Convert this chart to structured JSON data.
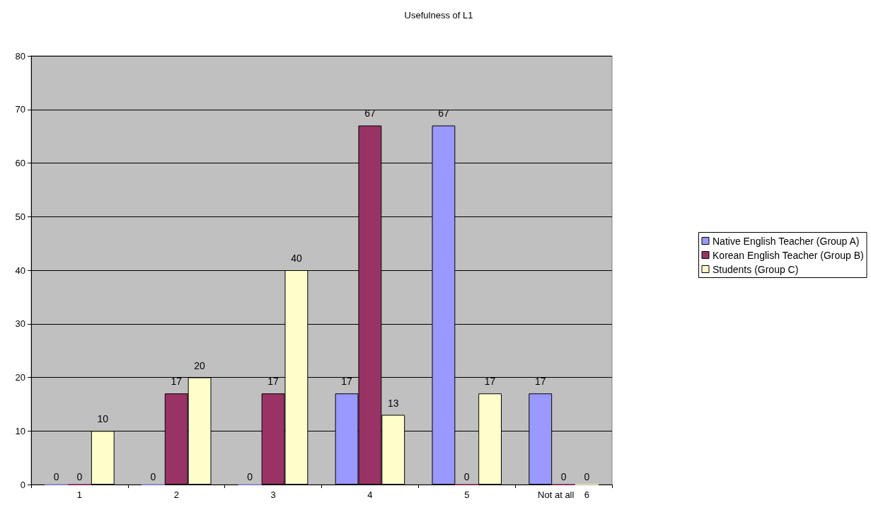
{
  "chart_data": {
    "type": "bar",
    "title": "Usefulness of L1",
    "categories": [
      "1",
      "2",
      "3",
      "4",
      "5",
      "Not at all    6"
    ],
    "series": [
      {
        "name": "Native English Teacher (Group A)",
        "color": "#9999ff",
        "values": [
          0,
          0,
          0,
          17,
          67,
          17
        ]
      },
      {
        "name": "Korean English Teacher (Group B)",
        "color": "#993366",
        "values": [
          0,
          17,
          17,
          67,
          0,
          0
        ]
      },
      {
        "name": "Students (Group C)",
        "color": "#ffffcc",
        "values": [
          10,
          20,
          40,
          13,
          17,
          0
        ]
      }
    ],
    "ylim": [
      0,
      80
    ],
    "yticks": [
      0,
      10,
      20,
      30,
      40,
      50,
      60,
      70,
      80
    ],
    "grid": "y",
    "legend": "right",
    "data_labels": true
  }
}
